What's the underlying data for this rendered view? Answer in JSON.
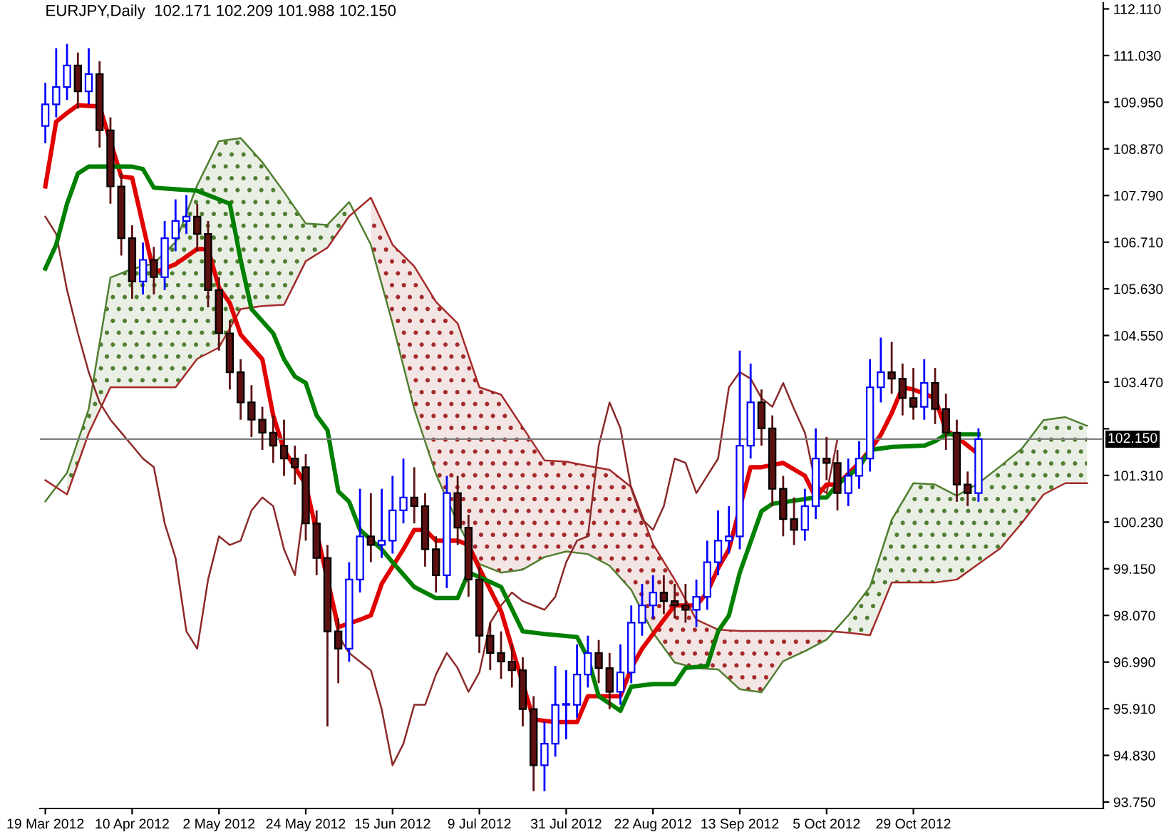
{
  "chart_data": {
    "type": "candlestick",
    "title": "EURJPY,Daily  102.171 102.209 101.988 102.150",
    "categories": [
      "19 Mar 2012",
      null,
      null,
      null,
      null,
      null,
      null,
      null,
      "10 Apr 2012",
      null,
      null,
      null,
      null,
      null,
      null,
      null,
      "2 May 2012",
      null,
      null,
      null,
      null,
      null,
      null,
      null,
      "24 May 2012",
      null,
      null,
      null,
      null,
      null,
      null,
      null,
      "15 Jun 2012",
      null,
      null,
      null,
      null,
      null,
      null,
      null,
      "9 Jul 2012",
      null,
      null,
      null,
      null,
      null,
      null,
      null,
      "31 Jul 2012",
      null,
      null,
      null,
      null,
      null,
      null,
      null,
      "22 Aug 2012",
      null,
      null,
      null,
      null,
      null,
      null,
      null,
      "13 Sep 2012",
      null,
      null,
      null,
      null,
      null,
      null,
      null,
      "5 Oct 2012",
      null,
      null,
      null,
      null,
      null,
      null,
      null,
      "29 Oct 2012",
      null,
      null,
      null,
      null,
      null,
      null,
      null,
      null,
      null,
      null,
      null,
      null,
      null,
      null,
      null,
      null,
      null
    ],
    "ylim": [
      93.6,
      112.25
    ],
    "yticks": [
      {
        "value": 93.75,
        "label": "93.750"
      },
      {
        "value": 94.83,
        "label": "94.830"
      },
      {
        "value": 95.91,
        "label": "95.910"
      },
      {
        "value": 96.99,
        "label": "96.990"
      },
      {
        "value": 98.07,
        "label": "98.070"
      },
      {
        "value": 99.15,
        "label": "99.150"
      },
      {
        "value": 100.23,
        "label": "100.230"
      },
      {
        "value": 101.31,
        "label": "101.310"
      },
      {
        "value": 102.39,
        "label": null
      },
      {
        "value": 103.47,
        "label": "103.470"
      },
      {
        "value": 104.55,
        "label": "104.550"
      },
      {
        "value": 105.63,
        "label": "105.630"
      },
      {
        "value": 106.71,
        "label": "106.710"
      },
      {
        "value": 107.79,
        "label": "107.790"
      },
      {
        "value": 108.87,
        "label": "108.870"
      },
      {
        "value": 109.95,
        "label": "109.950"
      },
      {
        "value": 111.03,
        "label": "111.030"
      },
      {
        "value": 112.11,
        "label": "112.110"
      }
    ],
    "grid": false,
    "legend": false,
    "ref_lines": [
      {
        "axis": "y",
        "value": 102.15,
        "label": "102.150",
        "color": "#808080"
      }
    ],
    "series": [
      {
        "type": "line",
        "color": "#4f7f2f",
        "values": [
          100.71,
          null,
          101.37,
          null,
          102.85,
          null,
          105.89,
          null,
          106.09,
          null,
          106.22,
          null,
          106.71,
          null,
          108.03,
          null,
          109.05,
          null,
          109.12,
          null,
          108.56,
          null,
          107.87,
          null,
          107.14,
          null,
          107.11,
          null,
          107.64,
          null,
          106.65,
          null,
          104.83,
          null,
          102.85,
          null,
          101.34,
          null,
          100.21,
          null,
          99.26,
          null,
          99.06,
          null,
          99.13,
          null,
          99.42,
          null,
          99.55,
          null,
          99.49,
          null,
          99.22,
          null,
          98.66,
          null,
          97.67,
          null,
          96.98,
          null,
          96.85,
          null,
          96.82,
          null,
          96.36,
          null,
          96.29,
          null,
          97.01,
          null,
          97.24,
          null,
          97.51,
          null,
          98.07,
          null,
          98.73,
          null,
          100.28,
          null,
          101.13,
          null,
          101.1,
          null,
          100.84,
          null,
          101.13,
          null,
          101.52,
          null,
          101.93,
          null,
          102.59,
          null,
          102.66,
          null,
          102.46,
          null
        ],
        "upper": [
          null,
          null,
          101.37,
          null,
          102.85,
          null,
          105.89,
          null,
          106.09,
          null,
          106.22,
          null,
          106.71,
          null,
          108.03,
          null,
          109.05,
          null,
          109.12,
          null,
          108.56,
          null,
          107.87,
          null,
          107.14,
          null,
          107.11,
          null,
          107.64,
          null,
          null,
          null,
          null,
          null,
          null,
          null,
          null,
          null,
          null,
          null,
          null,
          null,
          null,
          null,
          null,
          null,
          null,
          null,
          null,
          null,
          null,
          null,
          null,
          null,
          null,
          null,
          null,
          null,
          null,
          null,
          null,
          null,
          null,
          null,
          null,
          null,
          null,
          null,
          null,
          null,
          null,
          null,
          null,
          null,
          98.07,
          null,
          98.73,
          null,
          100.28,
          null,
          101.13,
          null,
          101.1,
          null,
          100.84,
          null,
          101.13,
          null,
          101.52,
          null,
          101.93,
          null,
          102.59,
          null,
          102.66,
          null,
          102.46,
          null
        ],
        "lower": [
          null,
          null,
          100.87,
          null,
          102.29,
          null,
          103.35,
          null,
          103.35,
          null,
          103.35,
          null,
          103.35,
          null,
          104.01,
          null,
          104.27,
          null,
          105.16,
          null,
          105.23,
          null,
          105.26,
          null,
          106.27,
          null,
          106.58,
          null,
          107.31,
          null,
          null,
          null,
          null,
          null,
          null,
          null,
          null,
          null,
          null,
          null,
          null,
          null,
          null,
          null,
          null,
          null,
          null,
          null,
          null,
          null,
          null,
          null,
          null,
          null,
          null,
          null,
          null,
          null,
          null,
          null,
          null,
          null,
          null,
          null,
          null,
          null,
          null,
          null,
          null,
          null,
          null,
          null,
          null,
          null,
          97.67,
          null,
          97.61,
          null,
          98.83,
          null,
          98.83,
          null,
          98.83,
          null,
          98.9,
          null,
          99.26,
          null,
          99.62,
          null,
          100.21,
          null,
          100.87,
          null,
          101.13,
          null,
          101.13,
          null
        ]
      },
      {
        "type": "line",
        "color": "#a52a2a",
        "values": [
          101.2,
          null,
          100.87,
          null,
          102.29,
          null,
          103.35,
          null,
          103.35,
          null,
          103.35,
          null,
          103.35,
          null,
          104.01,
          null,
          104.27,
          null,
          105.16,
          null,
          105.23,
          null,
          105.26,
          null,
          106.27,
          null,
          106.58,
          null,
          107.31,
          null,
          107.74,
          null,
          106.65,
          null,
          106.15,
          null,
          105.33,
          null,
          104.83,
          null,
          103.35,
          null,
          103.18,
          null,
          102.42,
          null,
          101.66,
          null,
          101.63,
          null,
          101.53,
          null,
          101.44,
          null,
          101.04,
          null,
          99.72,
          null,
          98.9,
          null,
          97.97,
          null,
          97.74,
          null,
          97.71,
          null,
          97.71,
          null,
          97.71,
          null,
          97.71,
          null,
          97.71,
          null,
          97.67,
          null,
          97.61,
          null,
          98.83,
          null,
          98.83,
          null,
          98.83,
          null,
          98.9,
          null,
          99.26,
          null,
          99.62,
          null,
          100.21,
          null,
          100.87,
          null,
          101.13,
          null,
          101.13,
          null
        ],
        "upper": [
          null,
          null,
          null,
          null,
          null,
          null,
          null,
          null,
          null,
          null,
          null,
          null,
          null,
          null,
          null,
          null,
          null,
          null,
          null,
          null,
          null,
          null,
          null,
          null,
          null,
          null,
          null,
          null,
          null,
          null,
          107.74,
          null,
          106.65,
          null,
          106.15,
          null,
          105.33,
          null,
          104.83,
          null,
          103.35,
          null,
          103.18,
          null,
          102.42,
          null,
          101.66,
          null,
          101.63,
          null,
          101.53,
          null,
          101.44,
          null,
          101.04,
          null,
          99.72,
          null,
          98.9,
          null,
          97.97,
          null,
          97.74,
          null,
          97.71,
          null,
          97.71,
          null,
          97.71,
          null,
          97.71,
          null,
          97.71,
          null,
          null,
          null,
          null,
          null,
          null,
          null,
          null,
          null,
          null,
          null,
          null,
          null,
          null,
          null,
          null,
          null,
          null,
          null,
          null,
          null,
          null,
          null,
          null,
          null
        ],
        "lower": [
          null,
          null,
          null,
          null,
          null,
          null,
          null,
          null,
          null,
          null,
          null,
          null,
          null,
          null,
          null,
          null,
          null,
          null,
          null,
          null,
          null,
          null,
          null,
          null,
          null,
          null,
          null,
          null,
          null,
          null,
          106.65,
          null,
          104.83,
          null,
          102.85,
          null,
          101.34,
          null,
          100.21,
          null,
          99.26,
          null,
          99.06,
          null,
          99.13,
          null,
          99.42,
          null,
          99.55,
          null,
          99.49,
          null,
          99.22,
          null,
          98.66,
          null,
          97.67,
          null,
          96.98,
          null,
          96.85,
          null,
          96.82,
          null,
          96.36,
          null,
          96.29,
          null,
          97.01,
          null,
          97.24,
          null,
          97.51,
          null,
          null,
          null,
          null,
          null,
          null,
          null,
          null,
          null,
          null,
          null,
          null,
          null,
          null,
          null,
          null,
          null,
          null,
          null,
          null,
          null,
          null,
          null,
          null,
          null
        ]
      },
      {
        "type": "line",
        "color": "#8b2a2a",
        "values": [
          107.3,
          106.9,
          105.6,
          104.6,
          103.7,
          103.0,
          102.6,
          102.3,
          102.0,
          101.7,
          101.5,
          100.2,
          99.4,
          97.7,
          97.3,
          98.9,
          99.9,
          99.7,
          99.8,
          100.5,
          100.8,
          100.6,
          99.6,
          99.0,
          100.9,
          100.1,
          null,
          97.6,
          97.2,
          97.0,
          96.8,
          95.9,
          94.6,
          95.1,
          96.0,
          96.0,
          96.7,
          97.2,
          96.85,
          96.3,
          96.75,
          97.9,
          98.3,
          98.6,
          98.4,
          98.3,
          98.2,
          98.5,
          99.3,
          99.8,
          99.9,
          102.0,
          103.0,
          102.4,
          101.0,
          100.3,
          100.05,
          100.6,
          101.7,
          101.6,
          100.9,
          101.3,
          101.7,
          103.35,
          103.7,
          103.55,
          103.1,
          102.9,
          103.45,
          102.85,
          102.3,
          101.1,
          100.9,
          102.15,
          null,
          null,
          null,
          null,
          null,
          null,
          null,
          null,
          null,
          null,
          null,
          null,
          null,
          null,
          null,
          null,
          null,
          null,
          null,
          null,
          null,
          null,
          null,
          null
        ]
      },
      {
        "type": "line",
        "color": "#e00000",
        "values": [
          108.0,
          109.5,
          109.7,
          109.88,
          null,
          109.85,
          null,
          108.23,
          108.2,
          null,
          106.0,
          null,
          106.2,
          null,
          106.55,
          106.55,
          105.66,
          105.3,
          104.57,
          null,
          104.0,
          102.7,
          101.9,
          null,
          101.1,
          null,
          null,
          97.8,
          null,
          97.97,
          98.07,
          98.8,
          null,
          99.6,
          100.05,
          100.05,
          99.8,
          null,
          99.8,
          99.7,
          99.16,
          null,
          98.17,
          null,
          null,
          95.66,
          null,
          95.6,
          null,
          95.6,
          96.2,
          96.2,
          null,
          96.2,
          96.85,
          97.3,
          97.64,
          97.97,
          98.3,
          null,
          98.3,
          98.6,
          99.16,
          99.6,
          null,
          101.5,
          101.5,
          null,
          101.6,
          null,
          101.3,
          100.8,
          101.1,
          101.1,
          null,
          101.6,
          101.9,
          102.25,
          102.75,
          103.35,
          103.3,
          null,
          103.1,
          102.36,
          102.2,
          null,
          101.8,
          null,
          null,
          null,
          null,
          null,
          null,
          null,
          null,
          null,
          null,
          null
        ]
      },
      {
        "type": "line",
        "color": "#008000",
        "values": [
          106.1,
          106.65,
          107.6,
          108.3,
          108.46,
          null,
          null,
          null,
          108.46,
          108.4,
          107.97,
          null,
          null,
          null,
          107.9,
          null,
          null,
          107.6,
          106.3,
          105.16,
          null,
          104.6,
          104.0,
          103.6,
          103.45,
          102.7,
          102.36,
          100.94,
          100.7,
          100.05,
          null,
          99.6,
          99.3,
          null,
          98.73,
          null,
          98.47,
          null,
          98.47,
          99.06,
          98.96,
          null,
          98.73,
          null,
          97.7,
          null,
          97.64,
          null,
          null,
          97.57,
          97.08,
          96.2,
          null,
          95.86,
          96.42,
          null,
          96.48,
          null,
          96.48,
          96.85,
          null,
          96.9,
          97.7,
          98.07,
          99.06,
          null,
          100.48,
          100.65,
          null,
          null,
          null,
          100.8,
          100.8,
          101.1,
          null,
          101.5,
          101.9,
          null,
          101.97,
          null,
          null,
          102.0,
          102.1,
          102.26,
          null,
          null,
          102.26,
          null,
          null,
          null,
          null,
          null,
          null,
          null,
          null,
          null,
          null,
          null
        ]
      },
      {
        "color": "#0000ff",
        "ohlc": [
          [
            109.4,
            110.4,
            109.0,
            109.9
          ],
          [
            109.9,
            111.2,
            109.6,
            110.3
          ],
          [
            110.3,
            111.3,
            110.0,
            110.8
          ],
          null,
          [
            110.2,
            111.2,
            109.9,
            110.6
          ],
          null,
          null,
          null,
          null,
          [
            105.8,
            106.7,
            105.5,
            106.3
          ],
          null,
          [
            105.9,
            107.2,
            105.6,
            106.8
          ],
          [
            106.8,
            107.7,
            106.5,
            107.2
          ],
          [
            107.2,
            107.8,
            106.9,
            107.3
          ],
          null,
          null,
          null,
          null,
          null,
          null,
          null,
          null,
          null,
          null,
          null,
          null,
          null,
          null,
          [
            97.3,
            99.3,
            97.0,
            98.9
          ],
          [
            98.9,
            101.0,
            98.6,
            99.9
          ],
          null,
          [
            99.7,
            101.0,
            99.4,
            99.8
          ],
          [
            99.8,
            101.3,
            99.5,
            100.5
          ],
          [
            100.5,
            101.7,
            100.2,
            100.8
          ],
          null,
          null,
          null,
          [
            99.0,
            101.3,
            98.7,
            100.9
          ],
          null,
          null,
          null,
          null,
          null,
          null,
          null,
          null,
          [
            94.6,
            95.6,
            94.0,
            95.1
          ],
          [
            95.1,
            96.9,
            94.8,
            96.0
          ],
          [
            96.0,
            96.8,
            95.2,
            96.0
          ],
          [
            96.0,
            97.4,
            95.7,
            96.7
          ],
          [
            96.7,
            97.6,
            96.4,
            97.2
          ],
          null,
          null,
          [
            96.3,
            97.4,
            96.0,
            96.75
          ],
          [
            96.75,
            98.3,
            96.5,
            97.9
          ],
          [
            97.9,
            98.8,
            97.6,
            98.3
          ],
          [
            98.3,
            99.0,
            98.0,
            98.6
          ],
          null,
          null,
          null,
          [
            98.2,
            98.9,
            97.8,
            98.5
          ],
          [
            98.5,
            99.8,
            98.2,
            99.3
          ],
          [
            99.3,
            100.5,
            99.0,
            99.8
          ],
          [
            99.8,
            100.6,
            99.5,
            99.9
          ],
          [
            99.9,
            104.2,
            99.6,
            102.0
          ],
          [
            102.0,
            103.9,
            101.7,
            103.0
          ],
          null,
          null,
          null,
          null,
          [
            100.05,
            101.0,
            99.8,
            100.6
          ],
          [
            100.6,
            102.4,
            100.3,
            101.7
          ],
          null,
          null,
          [
            100.9,
            101.7,
            100.6,
            101.3
          ],
          [
            101.3,
            102.1,
            101.0,
            101.7
          ],
          [
            101.7,
            104.0,
            101.4,
            103.35
          ],
          [
            103.35,
            104.5,
            103.0,
            103.7
          ],
          null,
          null,
          null,
          [
            102.9,
            104.0,
            102.6,
            103.45
          ],
          null,
          null,
          null,
          null,
          [
            100.9,
            102.4,
            100.7,
            102.15
          ],
          null,
          null,
          null,
          null,
          null,
          null,
          null,
          null,
          null,
          null,
          null
        ]
      },
      {
        "color": "#5c1010",
        "ohlc": [
          null,
          null,
          null,
          [
            110.8,
            111.1,
            109.8,
            110.2
          ],
          null,
          [
            110.6,
            110.9,
            108.9,
            109.3
          ],
          [
            109.3,
            109.6,
            107.6,
            108.0
          ],
          [
            108.0,
            108.3,
            106.4,
            106.8
          ],
          [
            106.8,
            107.1,
            105.4,
            105.8
          ],
          null,
          [
            106.3,
            106.6,
            105.5,
            105.9
          ],
          null,
          null,
          null,
          [
            107.3,
            107.6,
            106.5,
            106.9
          ],
          [
            106.9,
            107.2,
            105.2,
            105.6
          ],
          [
            105.6,
            105.9,
            104.2,
            104.6
          ],
          [
            104.6,
            104.9,
            103.3,
            103.7
          ],
          [
            103.7,
            104.0,
            102.6,
            103.0
          ],
          [
            103.0,
            103.4,
            102.2,
            102.6
          ],
          [
            102.6,
            102.9,
            101.9,
            102.3
          ],
          [
            102.3,
            102.7,
            101.6,
            102.0
          ],
          [
            102.0,
            102.6,
            101.3,
            101.7
          ],
          [
            101.7,
            102.0,
            101.1,
            101.5
          ],
          [
            101.5,
            101.8,
            99.8,
            100.2
          ],
          [
            100.2,
            100.5,
            99.0,
            99.4
          ],
          [
            99.4,
            99.7,
            95.5,
            97.7
          ],
          [
            97.7,
            98.0,
            96.5,
            97.3
          ],
          null,
          null,
          [
            99.9,
            100.9,
            99.3,
            99.7
          ],
          null,
          null,
          null,
          [
            100.8,
            101.5,
            100.2,
            100.6
          ],
          [
            100.6,
            100.9,
            99.2,
            99.6
          ],
          [
            99.6,
            99.9,
            98.6,
            99.0
          ],
          null,
          [
            100.9,
            101.3,
            99.7,
            100.1
          ],
          [
            100.1,
            100.4,
            98.5,
            98.9
          ],
          [
            98.9,
            99.2,
            97.2,
            97.6
          ],
          [
            97.6,
            97.9,
            96.8,
            97.2
          ],
          [
            97.2,
            97.7,
            96.6,
            97.0
          ],
          [
            97.0,
            97.4,
            96.4,
            96.8
          ],
          [
            96.8,
            97.1,
            95.5,
            95.9
          ],
          [
            95.9,
            96.2,
            94.0,
            94.6
          ],
          null,
          null,
          null,
          null,
          null,
          [
            97.2,
            97.5,
            96.5,
            96.85
          ],
          [
            96.85,
            97.2,
            95.9,
            96.3
          ],
          null,
          null,
          null,
          null,
          [
            98.6,
            99.0,
            98.1,
            98.4
          ],
          [
            98.4,
            98.8,
            98.0,
            98.3
          ],
          [
            98.3,
            98.8,
            97.9,
            98.2
          ],
          null,
          null,
          null,
          null,
          null,
          null,
          [
            103.0,
            103.3,
            102.0,
            102.4
          ],
          [
            102.4,
            102.7,
            100.6,
            101.0
          ],
          [
            101.0,
            101.3,
            99.9,
            100.3
          ],
          [
            100.3,
            100.8,
            99.7,
            100.05
          ],
          null,
          null,
          [
            101.7,
            102.2,
            101.2,
            101.6
          ],
          [
            101.6,
            101.9,
            100.5,
            100.9
          ],
          null,
          null,
          null,
          null,
          [
            103.7,
            104.4,
            103.2,
            103.55
          ],
          [
            103.55,
            103.9,
            102.7,
            103.1
          ],
          [
            103.1,
            103.8,
            102.6,
            102.9
          ],
          null,
          [
            103.45,
            103.8,
            102.5,
            102.85
          ],
          [
            102.85,
            103.2,
            101.9,
            102.3
          ],
          [
            102.3,
            102.6,
            100.7,
            101.1
          ],
          [
            101.1,
            101.4,
            100.6,
            100.9
          ],
          null,
          null,
          null,
          null,
          null,
          null,
          null,
          null,
          null,
          null,
          null,
          null
        ]
      }
    ]
  }
}
